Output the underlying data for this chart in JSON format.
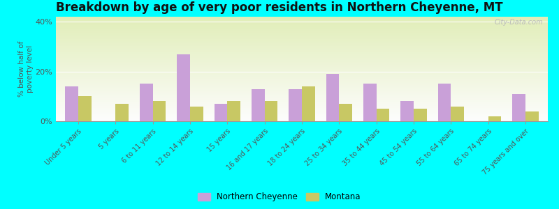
{
  "title": "Breakdown by age of very poor residents in Northern Cheyenne, MT",
  "ylabel": "% below half of\npoverty level",
  "categories": [
    "Under 5 years",
    "5 years",
    "6 to 11 years",
    "12 to 14 years",
    "15 years",
    "16 and 17 years",
    "18 to 24 years",
    "25 to 34 years",
    "35 to 44 years",
    "45 to 54 years",
    "55 to 64 years",
    "65 to 74 years",
    "75 years and over"
  ],
  "northern_cheyenne": [
    14,
    0,
    15,
    27,
    7,
    13,
    13,
    19,
    15,
    8,
    15,
    0,
    11
  ],
  "montana": [
    10,
    7,
    8,
    6,
    8,
    8,
    14,
    7,
    5,
    5,
    6,
    2,
    4
  ],
  "nc_color": "#c9a0d8",
  "mt_color": "#c8c864",
  "outer_background": "#00ffff",
  "plot_bg_top": "#f8faf0",
  "plot_bg_bottom": "#d8e8b8",
  "ylim": [
    0,
    42
  ],
  "yticks": [
    0,
    20,
    40
  ],
  "ytick_labels": [
    "0%",
    "20%",
    "40%"
  ],
  "legend_nc": "Northern Cheyenne",
  "legend_mt": "Montana",
  "title_fontsize": 12,
  "watermark": "City-Data.com"
}
